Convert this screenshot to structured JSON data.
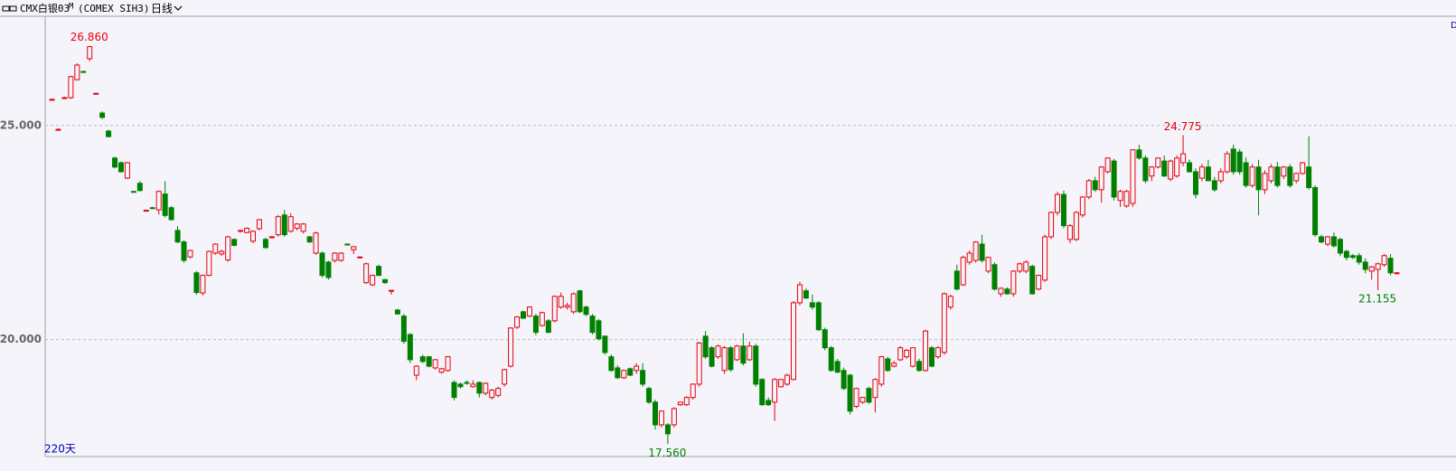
{
  "header": {
    "symbol": "CMX白银03",
    "flag": "M",
    "code": "(COMEX SIH3)",
    "period": "日线"
  },
  "chart_data": {
    "type": "candlestick",
    "span_label": "220天",
    "corner_label": "D",
    "up_color": "#e8000b",
    "down_color": "#008000",
    "ylim": [
      17.27,
      27.55
    ],
    "yticks": [
      {
        "value": 20,
        "label": "20.000"
      },
      {
        "value": 25,
        "label": "25.000"
      }
    ],
    "grid": true,
    "open": [
      25.61,
      24.91,
      25.65,
      25.65,
      26.07,
      26.26,
      26.56,
      25.73,
      25.29,
      24.87,
      24.24,
      24.13,
      23.77,
      23.46,
      23.65,
      23.01,
      23.08,
      23.03,
      23.4,
      23.08,
      22.55,
      22.28,
      21.93,
      21.56,
      21.09,
      21.5,
      22.02,
      22.0,
      21.86,
      22.34,
      22.54,
      22.5,
      22.3,
      22.59,
      22.34,
      22.4,
      22.45,
      22.91,
      22.53,
      22.6,
      22.53,
      22.4,
      22.02,
      22.02,
      21.81,
      21.85,
      21.85,
      22.23,
      22.1,
      21.92,
      21.33,
      21.28,
      21.71,
      21.4,
      21.14,
      20.69,
      20.55,
      20.12,
      19.17,
      19.6,
      19.6,
      19.34,
      19.24,
      19.28,
      19.0,
      18.96,
      19.0,
      18.9,
      19.0,
      18.75,
      18.65,
      18.7,
      18.96,
      19.38,
      20.29,
      20.65,
      20.55,
      20.55,
      20.33,
      20.44,
      20.44,
      20.76,
      20.76,
      20.65,
      21.14,
      20.76,
      20.55,
      20.44,
      20.08,
      19.6,
      19.34,
      19.11,
      19.32,
      19.28,
      19.28,
      18.86,
      18.54,
      18.01,
      18.01,
      18.01,
      18.48,
      18.48,
      18.65,
      18.96,
      20.08,
      19.81,
      19.6,
      19.28,
      19.81,
      19.53,
      19.85,
      19.53,
      19.85,
      19.07,
      18.58,
      18.54,
      18.9,
      18.96,
      19.07,
      20.86,
      21.14,
      20.86,
      20.86,
      20.23,
      19.81,
      19.49,
      19.28,
      19.17,
      18.44,
      18.54,
      18.86,
      18.65,
      18.96,
      19.55,
      19.38,
      19.53,
      19.6,
      19.38,
      19.49,
      19.28,
      19.81,
      19.6,
      19.7,
      20.76,
      21.6,
      21.28,
      21.81,
      21.85,
      22.23,
      21.6,
      21.75,
      21.07,
      21.18,
      21.07,
      21.6,
      21.6,
      21.71,
      21.18,
      21.39,
      22.4,
      22.97,
      23.39,
      22.34,
      22.34,
      22.91,
      23.33,
      23.71,
      23.5,
      23.92,
      24.17,
      23.25,
      23.12,
      23.18,
      24.43,
      24.24,
      23.82,
      24.03,
      24.17,
      23.75,
      23.82,
      24.13,
      24.13,
      23.92,
      23.77,
      24.03,
      23.71,
      23.71,
      23.92,
      24.45,
      24.38,
      24.13,
      23.6,
      24.03,
      23.5,
      23.71,
      24.03,
      23.82,
      24.03,
      23.71,
      23.88,
      24.03,
      23.55,
      22.4,
      22.23,
      22.4,
      22.34,
      22.06,
      21.96,
      21.96,
      21.81,
      21.6,
      21.64,
      21.75,
      21.9,
      21.55
    ],
    "high": [
      25.63,
      24.93,
      25.67,
      26.16,
      26.45,
      26.28,
      26.86,
      25.76,
      25.33,
      24.9,
      24.27,
      24.16,
      24.15,
      23.48,
      23.7,
      23.03,
      23.1,
      23.48,
      23.7,
      23.12,
      22.65,
      22.32,
      22.1,
      21.6,
      21.52,
      22.08,
      22.25,
      22.1,
      22.42,
      22.36,
      22.56,
      22.62,
      22.55,
      22.82,
      22.38,
      22.42,
      22.91,
      23.03,
      22.95,
      22.72,
      22.72,
      22.42,
      22.52,
      22.06,
      21.84,
      22.04,
      22.04,
      22.25,
      22.18,
      21.94,
      21.8,
      21.52,
      21.75,
      21.42,
      21.16,
      20.72,
      20.6,
      20.15,
      19.4,
      19.65,
      19.62,
      19.55,
      19.34,
      19.62,
      19.05,
      19.0,
      19.05,
      19.05,
      19.02,
      19.0,
      18.85,
      18.9,
      19.32,
      20.29,
      20.55,
      20.68,
      20.78,
      20.6,
      20.65,
      20.48,
      21.03,
      21.1,
      20.86,
      21.1,
      21.16,
      20.8,
      20.6,
      20.48,
      20.1,
      19.65,
      19.4,
      19.3,
      19.35,
      19.45,
      19.45,
      18.9,
      18.6,
      18.35,
      18.05,
      18.42,
      18.55,
      18.68,
      18.98,
      19.95,
      20.2,
      19.85,
      19.88,
      19.85,
      19.85,
      19.88,
      20.15,
      19.95,
      19.9,
      19.1,
      18.65,
      19.1,
      19.08,
      19.2,
      20.9,
      21.35,
      21.2,
      21.05,
      20.9,
      20.28,
      19.85,
      19.55,
      19.35,
      19.2,
      18.88,
      18.66,
      18.9,
      19.1,
      19.62,
      19.6,
      19.5,
      19.85,
      19.78,
      19.82,
      19.55,
      20.23,
      19.85,
      19.85,
      21.1,
      21.05,
      21.75,
      21.96,
      22.08,
      22.3,
      22.45,
      21.94,
      21.8,
      21.22,
      21.22,
      21.62,
      21.8,
      21.85,
      21.75,
      21.52,
      22.45,
      22.99,
      23.45,
      23.48,
      22.7,
      23.0,
      23.35,
      23.75,
      23.8,
      24.05,
      24.25,
      24.22,
      23.5,
      23.5,
      24.45,
      24.55,
      24.3,
      24.05,
      24.25,
      24.3,
      24.2,
      24.3,
      24.775,
      24.2,
      24.0,
      24.1,
      24.2,
      23.8,
      24.0,
      24.4,
      24.55,
      24.45,
      24.25,
      24.1,
      24.2,
      23.95,
      24.1,
      24.15,
      24.05,
      24.1,
      23.9,
      24.15,
      24.75,
      23.6,
      22.45,
      22.42,
      22.5,
      22.38,
      22.1,
      22.0,
      22.02,
      21.9,
      21.72,
      21.8,
      22.0,
      22.0,
      21.58
    ],
    "low": [
      25.59,
      24.89,
      25.63,
      25.62,
      26.05,
      26.24,
      26.5,
      25.72,
      25.15,
      24.72,
      24.0,
      23.9,
      23.75,
      23.44,
      23.46,
      22.99,
      23.05,
      22.92,
      22.85,
      22.78,
      22.25,
      21.8,
      21.9,
      21.05,
      21.03,
      21.48,
      21.98,
      21.95,
      21.82,
      22.18,
      22.5,
      22.48,
      22.25,
      22.55,
      22.12,
      22.38,
      22.4,
      22.4,
      22.5,
      22.55,
      22.48,
      22.26,
      21.98,
      21.45,
      21.4,
      21.8,
      21.82,
      22.2,
      22.0,
      21.9,
      21.3,
      21.25,
      21.48,
      21.3,
      21.05,
      20.58,
      19.9,
      19.45,
      19.05,
      19.45,
      19.35,
      19.3,
      19.2,
      19.25,
      18.58,
      18.86,
      18.95,
      18.88,
      18.65,
      18.7,
      18.6,
      18.65,
      18.9,
      19.35,
      20.25,
      20.48,
      20.52,
      20.1,
      20.3,
      20.15,
      20.4,
      20.72,
      20.7,
      20.6,
      20.62,
      20.55,
      20.12,
      19.98,
      19.65,
      19.25,
      19.08,
      19.08,
      19.15,
      19.2,
      18.9,
      18.5,
      17.9,
      17.95,
      17.56,
      17.95,
      18.45,
      18.45,
      18.6,
      18.9,
      19.55,
      19.35,
      19.55,
      19.2,
      19.25,
      19.5,
      19.4,
      19.5,
      18.9,
      18.45,
      18.45,
      18.1,
      18.88,
      18.92,
      19.05,
      20.8,
      20.95,
      20.7,
      20.2,
      19.75,
      19.25,
      19.22,
      18.82,
      18.25,
      18.4,
      18.5,
      18.5,
      18.3,
      18.9,
      19.25,
      19.35,
      19.5,
      19.55,
      19.35,
      19.25,
      19.25,
      19.35,
      19.55,
      19.65,
      20.7,
      21.15,
      21.25,
      21.75,
      21.8,
      21.8,
      21.55,
      21.15,
      21.0,
      21.05,
      21.0,
      21.55,
      21.55,
      21.05,
      21.15,
      21.35,
      22.35,
      22.9,
      22.6,
      22.25,
      22.3,
      22.85,
      23.28,
      23.45,
      23.2,
      23.88,
      23.25,
      23.1,
      23.08,
      23.1,
      24.2,
      23.65,
      23.7,
      24.0,
      23.8,
      23.7,
      23.78,
      24.05,
      23.9,
      23.3,
      23.7,
      23.7,
      23.45,
      23.65,
      23.88,
      23.85,
      23.85,
      23.55,
      23.55,
      22.9,
      23.4,
      23.65,
      23.55,
      23.75,
      23.55,
      23.65,
      23.85,
      23.5,
      22.4,
      22.25,
      22.18,
      22.15,
      21.95,
      21.85,
      21.88,
      21.75,
      21.55,
      21.4,
      21.155,
      21.7,
      21.5,
      21.52
    ],
    "close": [
      25.61,
      24.91,
      25.65,
      26.14,
      26.41,
      26.25,
      26.84,
      25.75,
      25.19,
      24.74,
      24.03,
      23.92,
      24.13,
      23.45,
      23.48,
      23.02,
      23.07,
      23.46,
      22.9,
      22.8,
      22.28,
      21.85,
      22.08,
      21.1,
      21.5,
      22.06,
      22.23,
      22.06,
      22.4,
      22.2,
      22.55,
      22.6,
      22.53,
      22.8,
      22.15,
      22.4,
      22.87,
      22.45,
      22.87,
      22.7,
      22.7,
      22.28,
      22.49,
      21.5,
      21.45,
      22.02,
      22.02,
      22.22,
      22.17,
      21.93,
      21.77,
      21.5,
      21.5,
      21.33,
      21.15,
      20.6,
      19.96,
      19.53,
      19.38,
      19.49,
      19.38,
      19.53,
      19.32,
      19.6,
      18.65,
      18.9,
      18.99,
      18.96,
      18.75,
      18.98,
      18.82,
      18.86,
      19.3,
      20.27,
      20.53,
      20.5,
      20.76,
      20.17,
      20.63,
      20.17,
      21.01,
      21.01,
      20.8,
      21.07,
      20.65,
      20.59,
      20.17,
      20.02,
      19.7,
      19.28,
      19.11,
      19.28,
      19.17,
      19.38,
      18.96,
      18.54,
      18.01,
      18.33,
      17.8,
      18.39,
      18.54,
      18.65,
      18.96,
      19.92,
      19.6,
      19.38,
      19.85,
      19.81,
      19.3,
      19.85,
      19.45,
      19.85,
      18.96,
      18.48,
      18.48,
      19.07,
      19.07,
      19.17,
      20.86,
      21.28,
      20.97,
      20.76,
      20.23,
      19.81,
      19.28,
      19.24,
      18.86,
      18.33,
      18.86,
      18.65,
      18.54,
      19.07,
      19.6,
      19.28,
      19.45,
      19.81,
      19.75,
      19.81,
      19.28,
      20.2,
      19.38,
      19.81,
      21.07,
      21.01,
      21.18,
      21.92,
      22.02,
      22.28,
      21.85,
      21.92,
      21.18,
      21.2,
      21.07,
      21.6,
      21.77,
      21.81,
      21.07,
      21.5,
      22.4,
      22.97,
      23.39,
      22.66,
      22.66,
      22.97,
      23.33,
      23.71,
      23.5,
      24.03,
      24.24,
      23.33,
      23.46,
      23.46,
      24.43,
      24.24,
      23.71,
      24.03,
      24.24,
      23.82,
      24.17,
      24.24,
      24.34,
      23.92,
      23.39,
      24.03,
      23.71,
      23.5,
      23.92,
      24.34,
      23.92,
      23.92,
      23.6,
      24.03,
      23.5,
      23.88,
      24.03,
      23.6,
      24.03,
      23.6,
      23.88,
      24.13,
      23.55,
      22.45,
      22.28,
      22.4,
      22.19,
      22.02,
      21.92,
      21.92,
      21.81,
      21.64,
      21.7,
      21.77,
      21.96,
      21.56,
      21.56
    ],
    "annotations": [
      {
        "value": 26.86,
        "label": "26.860",
        "color": "#e8000b"
      },
      {
        "value": 24.775,
        "label": "24.775",
        "color": "#e8000b"
      },
      {
        "value": 17.56,
        "label": "17.560",
        "color": "#008000"
      },
      {
        "value": 21.155,
        "label": "21.155",
        "color": "#008000"
      }
    ]
  }
}
